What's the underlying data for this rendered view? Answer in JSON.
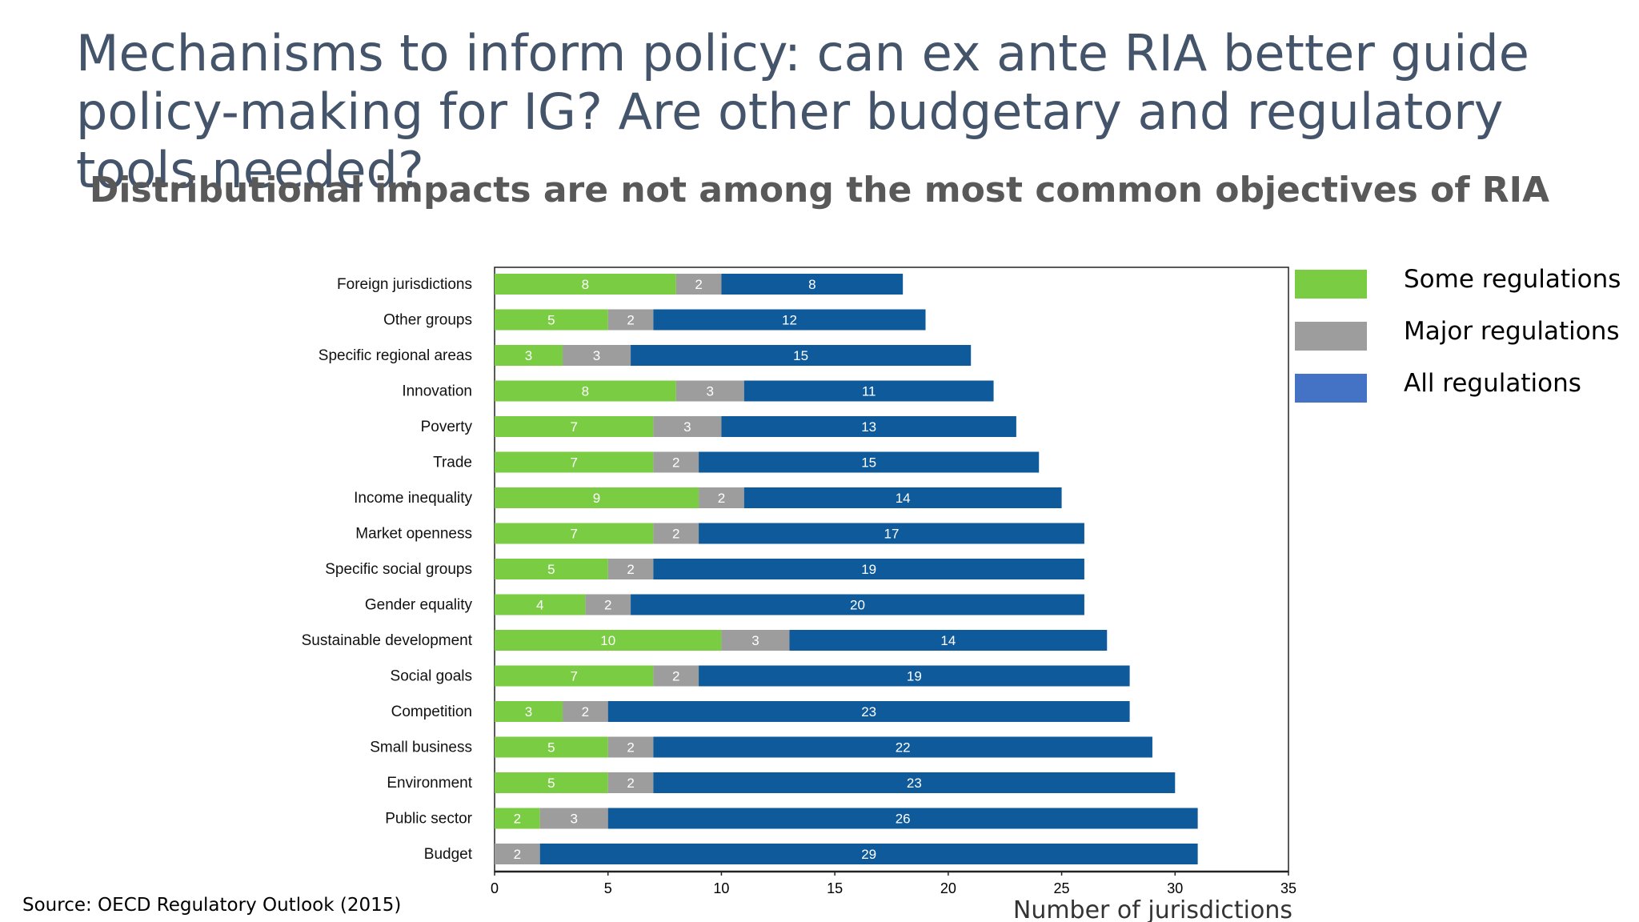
{
  "title": "Mechanisms to inform policy: can ex ante RIA better guide policy-making for IG? Are other budgetary and regulatory tools needed?",
  "subtitle": "Distributional impacts are not among the most common objectives of RIA",
  "source": "Source: OECD Regulatory Outlook (2015)",
  "colors": {
    "some": "#7acc42",
    "major": "#9d9d9d",
    "all": "#0f5a9a",
    "legend_all": "#4472c4"
  },
  "chart_data": {
    "type": "bar",
    "orientation": "horizontal",
    "stacked": true,
    "xlabel": "Number of jurisdictions",
    "xlim": [
      0,
      35
    ],
    "xticks": [
      "0",
      "5",
      "10",
      "15",
      "20",
      "25",
      "30",
      "35"
    ],
    "categories": [
      "Foreign jurisdictions",
      "Other groups",
      "Specific regional areas",
      "Innovation",
      "Poverty",
      "Trade",
      "Income inequality",
      "Market openness",
      "Specific social groups",
      "Gender equality",
      "Sustainable development",
      "Social goals",
      "Competition",
      "Small business",
      "Environment",
      "Public sector",
      "Budget"
    ],
    "series": [
      {
        "name": "Some regulations",
        "values": [
          8,
          5,
          3,
          8,
          7,
          7,
          9,
          7,
          5,
          4,
          10,
          7,
          3,
          5,
          5,
          2,
          0
        ]
      },
      {
        "name": "Major regulations",
        "values": [
          2,
          2,
          3,
          3,
          3,
          2,
          2,
          2,
          2,
          2,
          3,
          2,
          2,
          2,
          2,
          3,
          2
        ]
      },
      {
        "name": "All regulations",
        "values": [
          8,
          12,
          15,
          11,
          13,
          15,
          14,
          17,
          19,
          20,
          14,
          19,
          23,
          22,
          23,
          26,
          29
        ]
      }
    ]
  }
}
